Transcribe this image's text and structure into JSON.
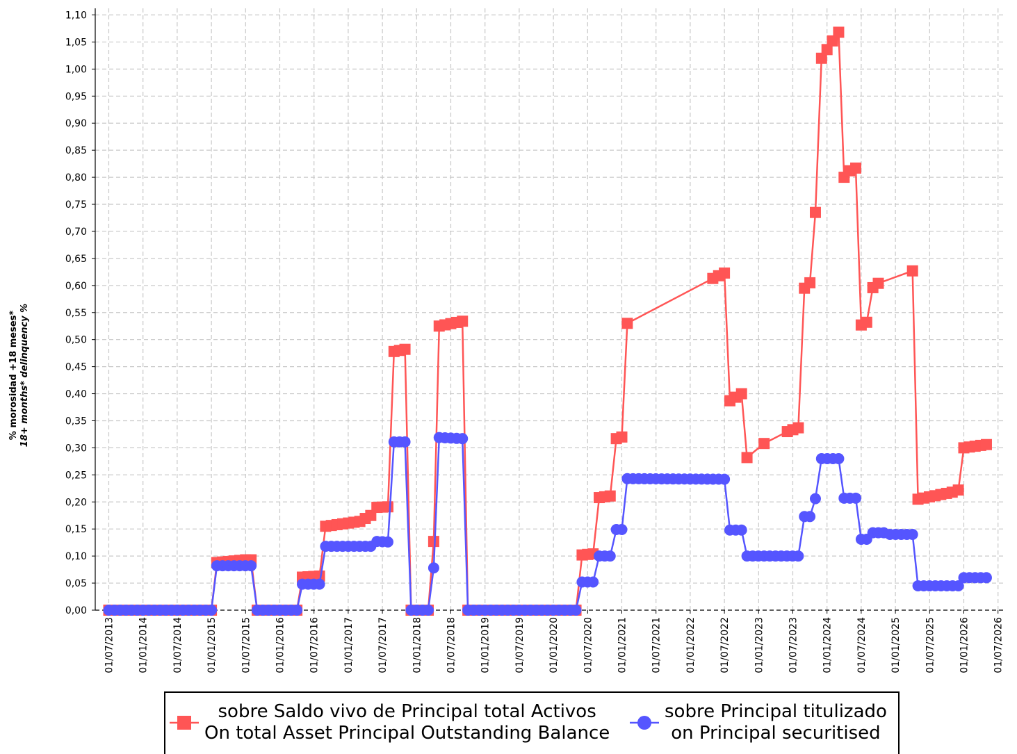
{
  "chart_data": {
    "type": "line",
    "ylabel_line1": "% morosidad +18 meses*",
    "ylabel_line2": "18+ months* delinquency %",
    "ylim": [
      0,
      1.1
    ],
    "y_ticks": [
      "0,00",
      "0,05",
      "0,10",
      "0,15",
      "0,20",
      "0,25",
      "0,30",
      "0,35",
      "0,40",
      "0,45",
      "0,50",
      "0,55",
      "0,60",
      "0,65",
      "0,70",
      "0,75",
      "0,80",
      "0,85",
      "0,90",
      "0,95",
      "1,00",
      "1,05",
      "1,10"
    ],
    "x_ticks": [
      "01/07/2013",
      "01/01/2014",
      "01/07/2014",
      "01/01/2015",
      "01/07/2015",
      "01/01/2016",
      "01/07/2016",
      "01/01/2017",
      "01/07/2017",
      "01/01/2018",
      "01/07/2018",
      "01/01/2019",
      "01/07/2019",
      "01/01/2020",
      "01/07/2020",
      "01/01/2021",
      "01/07/2021",
      "01/01/2022",
      "01/07/2022",
      "01/01/2023",
      "01/07/2023",
      "01/01/2024",
      "01/07/2024",
      "01/01/2025",
      "01/07/2025",
      "01/01/2026",
      "01/07/2026"
    ],
    "grid": true,
    "legend_position": "bottom",
    "series": [
      {
        "name": "sobre Saldo vivo de Principal total Activos",
        "name_line2": "On total Asset Principal Outstanding Balance",
        "color": "#ff5555",
        "marker": "square",
        "points": [
          [
            2013.5,
            0.0
          ],
          [
            2015.0,
            0.0
          ],
          [
            2015.08,
            0.088
          ],
          [
            2015.5,
            0.093
          ],
          [
            2015.58,
            0.093
          ],
          [
            2015.67,
            0.0
          ],
          [
            2016.25,
            0.0
          ],
          [
            2016.33,
            0.061
          ],
          [
            2016.58,
            0.063
          ],
          [
            2016.67,
            0.155
          ],
          [
            2017.17,
            0.164
          ],
          [
            2017.33,
            0.175
          ],
          [
            2017.42,
            0.19
          ],
          [
            2017.58,
            0.191
          ],
          [
            2017.67,
            0.478
          ],
          [
            2017.83,
            0.482
          ],
          [
            2017.92,
            0.0
          ],
          [
            2018.17,
            0.0
          ],
          [
            2018.25,
            0.127
          ],
          [
            2018.33,
            0.525
          ],
          [
            2018.67,
            0.534
          ],
          [
            2018.75,
            0.0
          ],
          [
            2020.33,
            0.0
          ],
          [
            2020.42,
            0.102
          ],
          [
            2020.58,
            0.104
          ],
          [
            2020.67,
            0.208
          ],
          [
            2020.83,
            0.211
          ],
          [
            2020.92,
            0.317
          ],
          [
            2021.0,
            0.32
          ],
          [
            2021.08,
            0.53
          ],
          [
            2022.33,
            0.613
          ],
          [
            2022.5,
            0.623
          ],
          [
            2022.58,
            0.387
          ],
          [
            2022.75,
            0.4
          ],
          [
            2022.83,
            0.282
          ],
          [
            2023.08,
            0.308
          ],
          [
            2023.42,
            0.33
          ],
          [
            2023.58,
            0.337
          ],
          [
            2023.67,
            0.595
          ],
          [
            2023.75,
            0.605
          ],
          [
            2023.83,
            0.735
          ],
          [
            2023.92,
            1.02
          ],
          [
            2024.0,
            1.036
          ],
          [
            2024.08,
            1.052
          ],
          [
            2024.17,
            1.068
          ],
          [
            2024.25,
            0.8
          ],
          [
            2024.33,
            0.812
          ],
          [
            2024.42,
            0.817
          ],
          [
            2024.5,
            0.527
          ],
          [
            2024.58,
            0.532
          ],
          [
            2024.67,
            0.596
          ],
          [
            2024.75,
            0.604
          ],
          [
            2025.25,
            0.627
          ],
          [
            2025.33,
            0.205
          ],
          [
            2025.83,
            0.218
          ],
          [
            2025.92,
            0.222
          ],
          [
            2026.0,
            0.3
          ],
          [
            2026.33,
            0.306
          ]
        ]
      },
      {
        "name": "sobre Principal titulizado",
        "name_line2": "on Principal securitised",
        "color": "#5555ff",
        "marker": "circle",
        "points": [
          [
            2013.5,
            0.0
          ],
          [
            2015.0,
            0.0
          ],
          [
            2015.08,
            0.082
          ],
          [
            2015.58,
            0.082
          ],
          [
            2015.67,
            0.0
          ],
          [
            2016.25,
            0.0
          ],
          [
            2016.33,
            0.048
          ],
          [
            2016.58,
            0.048
          ],
          [
            2016.67,
            0.118
          ],
          [
            2017.25,
            0.118
          ],
          [
            2017.33,
            0.118
          ],
          [
            2017.42,
            0.127
          ],
          [
            2017.58,
            0.126
          ],
          [
            2017.67,
            0.311
          ],
          [
            2017.83,
            0.311
          ],
          [
            2017.92,
            0.0
          ],
          [
            2018.17,
            0.0
          ],
          [
            2018.25,
            0.078
          ],
          [
            2018.33,
            0.319
          ],
          [
            2018.67,
            0.317
          ],
          [
            2018.75,
            0.0
          ],
          [
            2020.33,
            0.0
          ],
          [
            2020.42,
            0.052
          ],
          [
            2020.58,
            0.052
          ],
          [
            2020.67,
            0.1
          ],
          [
            2020.83,
            0.1
          ],
          [
            2020.92,
            0.149
          ],
          [
            2021.0,
            0.149
          ],
          [
            2021.08,
            0.243
          ],
          [
            2022.5,
            0.242
          ],
          [
            2022.58,
            0.148
          ],
          [
            2022.75,
            0.148
          ],
          [
            2022.83,
            0.1
          ],
          [
            2023.58,
            0.1
          ],
          [
            2023.67,
            0.173
          ],
          [
            2023.75,
            0.173
          ],
          [
            2023.83,
            0.206
          ],
          [
            2023.92,
            0.28
          ],
          [
            2024.17,
            0.28
          ],
          [
            2024.25,
            0.207
          ],
          [
            2024.42,
            0.207
          ],
          [
            2024.5,
            0.131
          ],
          [
            2024.58,
            0.131
          ],
          [
            2024.67,
            0.143
          ],
          [
            2024.83,
            0.143
          ],
          [
            2024.92,
            0.14
          ],
          [
            2025.25,
            0.14
          ],
          [
            2025.33,
            0.045
          ],
          [
            2025.92,
            0.045
          ],
          [
            2026.0,
            0.06
          ],
          [
            2026.33,
            0.06
          ]
        ]
      }
    ]
  }
}
